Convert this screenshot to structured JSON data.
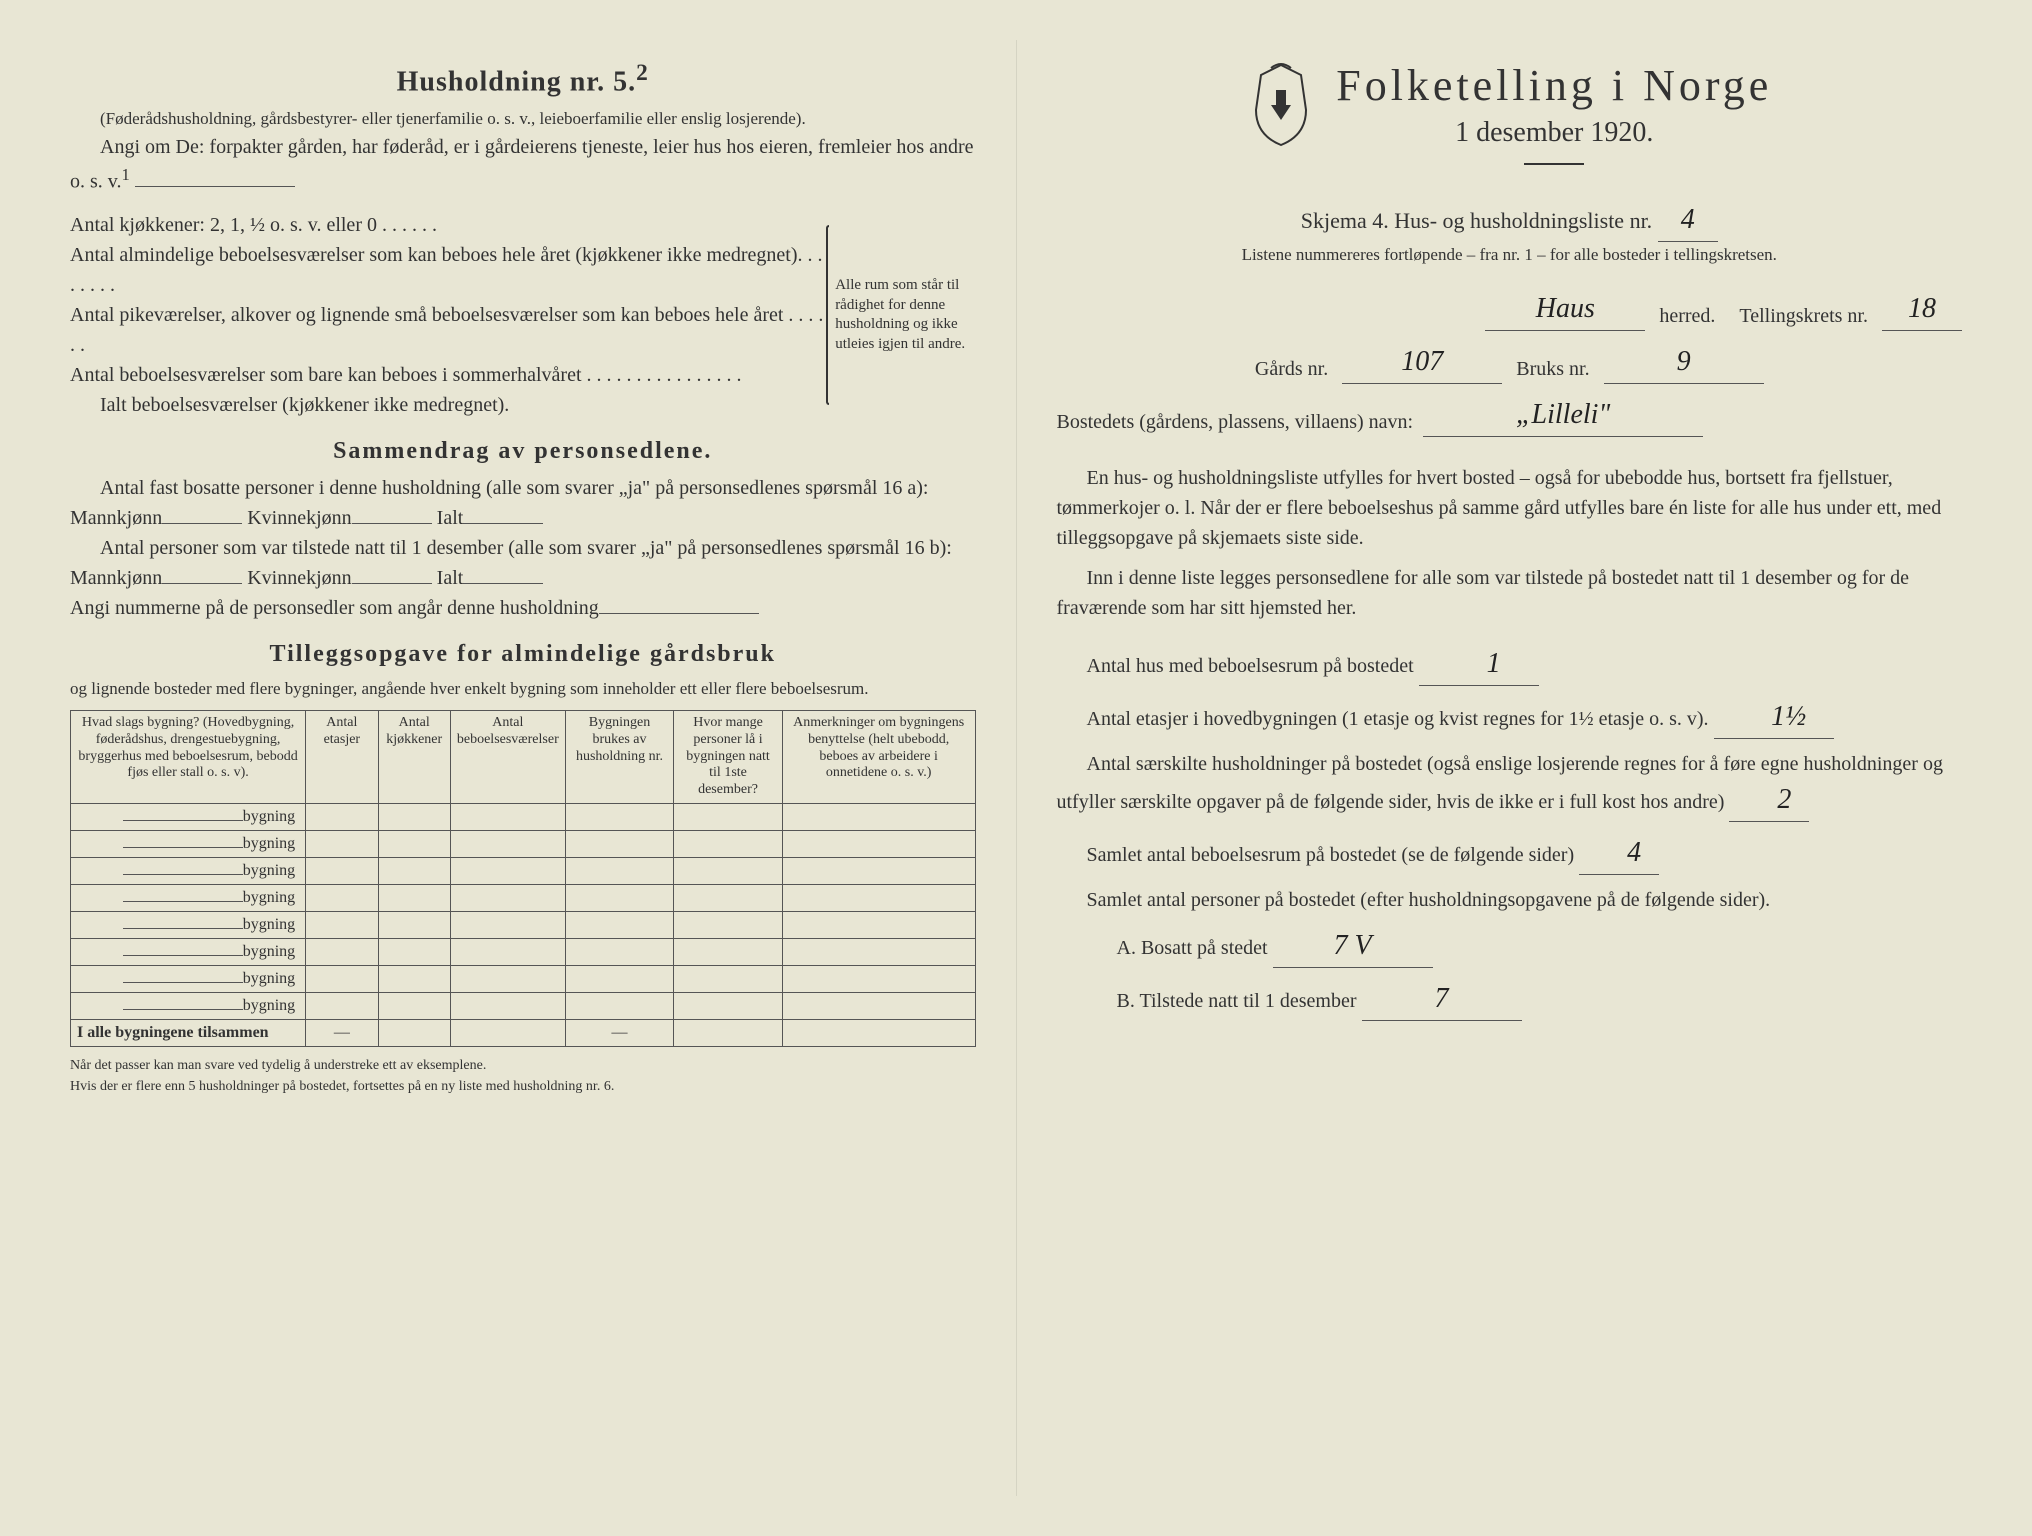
{
  "colors": {
    "paper": "#e8e6d4",
    "ink": "#333333",
    "handwriting": "#222222"
  },
  "left": {
    "heading": "Husholdning nr. 5.",
    "heading_sup": "2",
    "sub1": "(Føderådshusholdning, gårdsbestyrer- eller tjenerfamilie o. s. v., leieboerfamilie eller enslig losjerende).",
    "sub2": "Angi om De:  forpakter gården, har føderåd, er i gårdeierens tjeneste, leier hus hos eieren, fremleier hos andre o. s. v.",
    "sub2_sup": "1",
    "kitchen_lines": [
      "Antal kjøkkener: 2, 1, ½ o. s. v. eller 0 . . . . . .",
      "Antal almindelige beboelsesværelser som kan beboes hele året (kjøkkener ikke medregnet). . . . . . . .",
      "Antal pikeværelser, alkover og lignende små beboelsesværelser som kan beboes hele året . . . . . .",
      "Antal beboelsesværelser som bare kan beboes i sommerhalvåret . . . . . . . . . . . . . . . .",
      "Ialt beboelsesværelser  (kjøkkener ikke medregnet)."
    ],
    "bracket_text": "Alle rum som står til rådighet for denne husholdning og ikke utleies igjen til andre.",
    "section2_heading": "Sammendrag av personsedlene.",
    "s2_line1a": "Antal fast bosatte personer i denne husholdning (alle som svarer „ja\" på personsedlenes spørsmål 16 a): Mannkjønn",
    "s2_kvinne": "Kvinnekjønn",
    "s2_ialt": "Ialt",
    "s2_line2a": "Antal personer som var tilstede natt til 1 desember (alle som svarer „ja\" på personsedlenes spørsmål 16 b): Mannkjønn",
    "s2_line3": "Angi nummerne på de personsedler som angår denne husholdning",
    "section3_heading": "Tilleggsopgave for almindelige gårdsbruk",
    "s3_sub": "og lignende bosteder med flere bygninger, angående hver enkelt bygning som inneholder ett eller flere beboelsesrum.",
    "table_headers": [
      "Hvad slags bygning?\n(Hovedbygning, føderådshus, drengestuebygning, bryggerhus med beboelsesrum, bebodd fjøs eller stall o. s. v).",
      "Antal etasjer",
      "Antal kjøkkener",
      "Antal beboelsesværelser",
      "Bygningen brukes av husholdning nr.",
      "Hvor mange personer lå i bygningen natt til 1ste desember?",
      "Anmerkninger om bygningens benyttelse (helt ubebodd, beboes av arbeidere i onnetidene o. s. v.)"
    ],
    "bygning_label": "bygning",
    "bygning_rows": 8,
    "table_footer": "I alle bygningene tilsammen",
    "footnote": "Når det passer kan man svare ved tydelig å understreke ett av eksemplene.\nHvis der er flere enn 5 husholdninger på bostedet, fortsettes på en ny liste med husholdning nr. 6."
  },
  "right": {
    "main_title": "Folketelling i Norge",
    "sub_title": "1 desember 1920.",
    "skjema_line": "Skjema 4.  Hus- og husholdningsliste nr.",
    "skjema_nr": "4",
    "listene": "Listene nummereres fortløpende – fra nr. 1 – for alle bosteder i tellingskretsen.",
    "herred_hand": "Haus",
    "herred_label": "herred.",
    "tellingskrets_label": "Tellingskrets nr.",
    "tellingskrets_nr": "18",
    "gards_label": "Gårds nr.",
    "gards_nr": "107",
    "bruks_label": "Bruks nr.",
    "bruks_nr": "9",
    "bosted_label": "Bostedets (gårdens, plassens, villaens) navn:",
    "bosted_navn": "„Lilleli\"",
    "para1": "En hus- og husholdningsliste utfylles for hvert bosted – også for ubebodde hus, bortsett fra fjellstuer, tømmerkojer o. l.  Når der er flere beboelseshus på samme gård utfylles bare én liste for alle hus under ett, med tilleggsopgave på skjemaets siste side.",
    "para2": "Inn i denne liste legges personsedlene for alle som var tilstede på bostedet natt til 1 desember og for de fraværende som har sitt hjemsted her.",
    "q1": "Antal hus med beboelsesrum på bostedet",
    "q1_ans": "1",
    "q2a": "Antal etasjer i hovedbygningen (1 etasje og kvist regnes for 1½ etasje o. s. v).",
    "q2_ans": "1½",
    "q3": "Antal særskilte husholdninger på bostedet (også enslige losjerende regnes for å føre egne husholdninger og utfyller særskilte opgaver på de følgende sider, hvis de ikke er i full kost hos andre)",
    "q3_ans": "2",
    "q4": "Samlet antal beboelsesrum på bostedet (se de følgende sider)",
    "q4_ans": "4",
    "q5": "Samlet antal personer på bostedet (efter husholdningsopgavene på de følgende sider).",
    "q5a_label": "A.  Bosatt på stedet",
    "q5a_ans": "7 V",
    "q5b_label": "B.  Tilstede natt til 1 desember",
    "q5b_ans": "7"
  }
}
